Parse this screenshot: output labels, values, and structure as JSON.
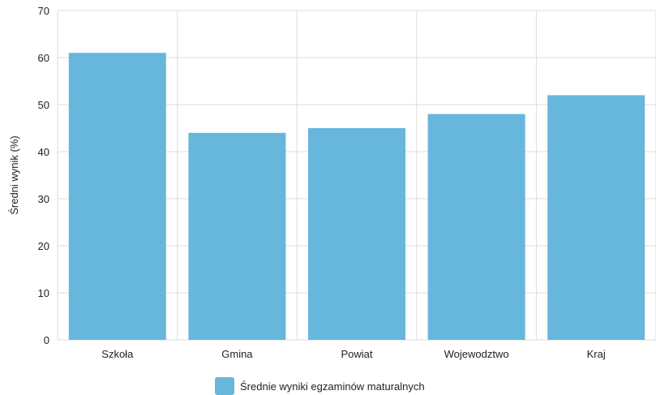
{
  "chart_data": {
    "type": "bar",
    "categories": [
      "Szkoła",
      "Gmina",
      "Powiat",
      "Wojewodztwo",
      "Kraj"
    ],
    "series": [
      {
        "name": "Średnie wyniki egzaminów maturalnych",
        "values": [
          61,
          44,
          45,
          48,
          52
        ],
        "color": "#67b6dc"
      }
    ],
    "ylabel": "Średni wynik (%)",
    "xlabel": "",
    "ylim": [
      0,
      70
    ],
    "yticks": [
      0,
      10,
      20,
      30,
      40,
      50,
      60,
      70
    ],
    "grid": true,
    "legend": "bottom"
  }
}
